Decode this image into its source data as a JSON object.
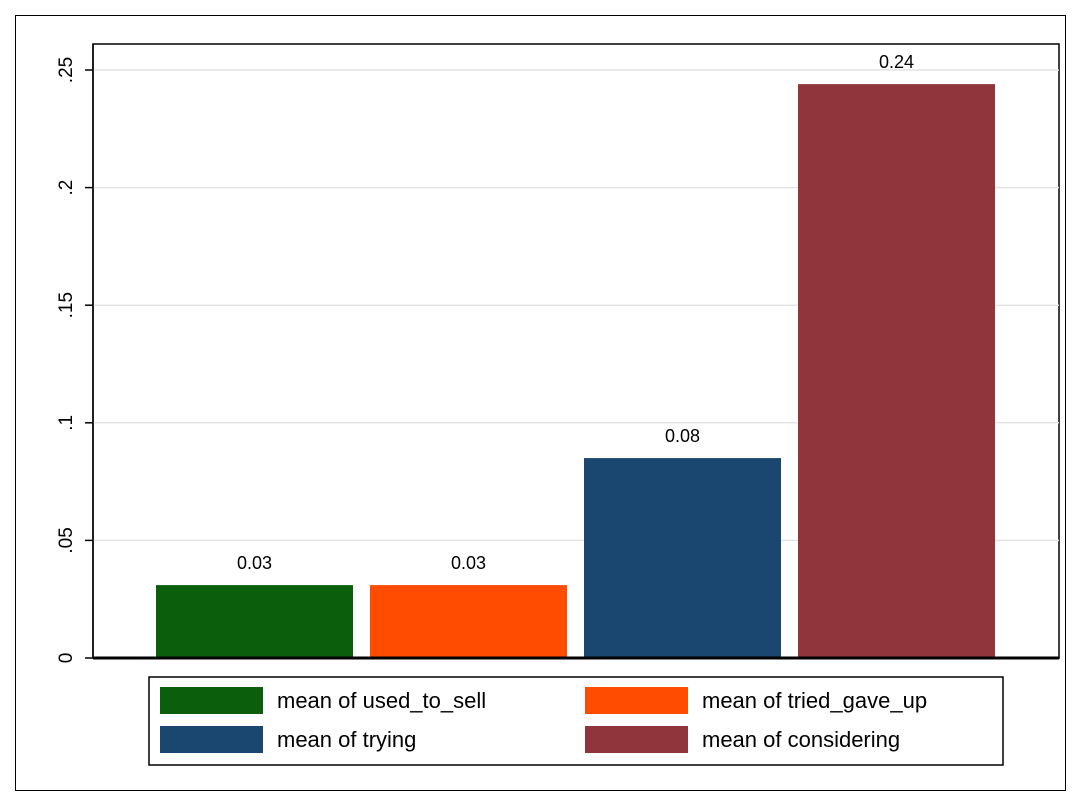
{
  "chart_data": {
    "type": "bar",
    "title": "",
    "xlabel": "",
    "ylabel": "",
    "ylim": [
      0,
      0.25
    ],
    "yticks": [
      {
        "value": 0,
        "label": "0"
      },
      {
        "value": 0.05,
        "label": ".05"
      },
      {
        "value": 0.1,
        "label": ".1"
      },
      {
        "value": 0.15,
        "label": ".15"
      },
      {
        "value": 0.2,
        "label": ".2"
      },
      {
        "value": 0.25,
        "label": ".25"
      }
    ],
    "grid": true,
    "legend_placement": "bottom",
    "series": [
      {
        "name": "mean of used_to_sell",
        "value": 0.031,
        "label": "0.03",
        "color": "#0b5e0b"
      },
      {
        "name": "mean of tried_gave_up",
        "value": 0.031,
        "label": "0.03",
        "color": "#ff4c00"
      },
      {
        "name": "mean of trying",
        "value": 0.085,
        "label": "0.08",
        "color": "#1a476f"
      },
      {
        "name": "mean of considering",
        "value": 0.244,
        "label": "0.24",
        "color": "#90353b"
      }
    ]
  }
}
